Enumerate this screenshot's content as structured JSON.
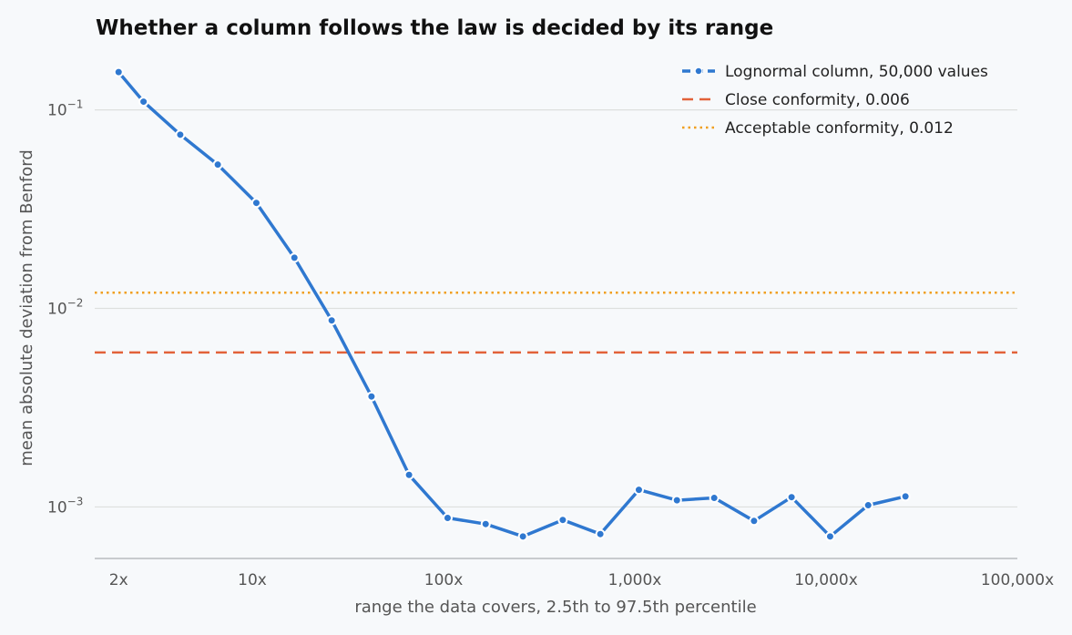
{
  "chart_data": {
    "type": "line",
    "title": "Whether a column follows the law is decided by its range",
    "xlabel": "range the data covers, 2.5th to 97.5th percentile",
    "ylabel": "mean absolute deviation from Benford",
    "x_scale": "log",
    "y_scale": "log",
    "xlim": [
      1.5,
      100000
    ],
    "ylim": [
      0.00055,
      0.2
    ],
    "x_ticks": [
      {
        "value": 2,
        "label": "2x"
      },
      {
        "value": 10,
        "label": "10x"
      },
      {
        "value": 100,
        "label": "100x"
      },
      {
        "value": 1000,
        "label": "1,000x"
      },
      {
        "value": 10000,
        "label": "10,000x"
      },
      {
        "value": 100000,
        "label": "100,000x"
      }
    ],
    "y_ticks": [
      {
        "value": 0.1,
        "base": "10",
        "exp": "−1"
      },
      {
        "value": 0.01,
        "base": "10",
        "exp": "−2"
      },
      {
        "value": 0.001,
        "base": "10",
        "exp": "−3"
      }
    ],
    "grid": "horizontal",
    "legend_position": "top-right",
    "series": [
      {
        "name": "Lognormal column, 50,000 values",
        "color": "#2f78d0",
        "style": "dash-dot",
        "x": [
          2,
          2.7,
          4.2,
          6.6,
          10.5,
          16.6,
          26,
          42,
          66,
          105,
          166,
          260,
          420,
          660,
          1050,
          1660,
          2600,
          4200,
          6600,
          10500,
          16600,
          26000
        ],
        "y": [
          0.155,
          0.11,
          0.075,
          0.053,
          0.034,
          0.018,
          0.0087,
          0.0036,
          0.00145,
          0.00088,
          0.00082,
          0.00071,
          0.00086,
          0.00073,
          0.00122,
          0.00108,
          0.00111,
          0.00085,
          0.00112,
          0.00071,
          0.00102,
          0.00113
        ]
      },
      {
        "name": "Close conformity, 0.006",
        "color": "#e2623a",
        "style": "dashed",
        "hline": 0.006
      },
      {
        "name": "Acceptable conformity, 0.012",
        "color": "#f0a020",
        "style": "dotted",
        "hline": 0.012
      }
    ]
  }
}
